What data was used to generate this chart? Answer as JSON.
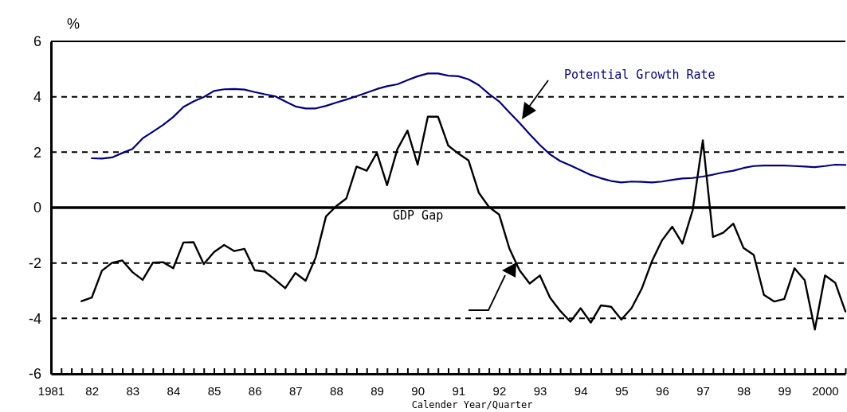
{
  "chart_data": {
    "type": "line",
    "xlabel": "Calender Year/Quarter",
    "ylabel": "%",
    "xlim": [
      1981,
      2000.5
    ],
    "ylim": [
      -6,
      6
    ],
    "yticks": [
      -6,
      -4,
      -2,
      0,
      2,
      4,
      6
    ],
    "xticks": [
      {
        "value": 1981,
        "label": "1981"
      },
      {
        "value": 1981.25,
        "label": null
      },
      {
        "value": 1981.5,
        "label": null
      },
      {
        "value": 1981.75,
        "label": null
      },
      {
        "value": 1982,
        "label": "82"
      },
      {
        "value": 1982.25,
        "label": null
      },
      {
        "value": 1982.5,
        "label": null
      },
      {
        "value": 1982.75,
        "label": null
      },
      {
        "value": 1983,
        "label": "83"
      },
      {
        "value": 1983.25,
        "label": null
      },
      {
        "value": 1983.5,
        "label": null
      },
      {
        "value": 1983.75,
        "label": null
      },
      {
        "value": 1984,
        "label": "84"
      },
      {
        "value": 1984.25,
        "label": null
      },
      {
        "value": 1984.5,
        "label": null
      },
      {
        "value": 1984.75,
        "label": null
      },
      {
        "value": 1985,
        "label": "85"
      },
      {
        "value": 1985.25,
        "label": null
      },
      {
        "value": 1985.5,
        "label": null
      },
      {
        "value": 1985.75,
        "label": null
      },
      {
        "value": 1986,
        "label": "86"
      },
      {
        "value": 1986.25,
        "label": null
      },
      {
        "value": 1986.5,
        "label": null
      },
      {
        "value": 1986.75,
        "label": null
      },
      {
        "value": 1987,
        "label": "87"
      },
      {
        "value": 1987.25,
        "label": null
      },
      {
        "value": 1987.5,
        "label": null
      },
      {
        "value": 1987.75,
        "label": null
      },
      {
        "value": 1988,
        "label": "88"
      },
      {
        "value": 1988.25,
        "label": null
      },
      {
        "value": 1988.5,
        "label": null
      },
      {
        "value": 1988.75,
        "label": null
      },
      {
        "value": 1989,
        "label": "89"
      },
      {
        "value": 1989.25,
        "label": null
      },
      {
        "value": 1989.5,
        "label": null
      },
      {
        "value": 1989.75,
        "label": null
      },
      {
        "value": 1990,
        "label": "90"
      },
      {
        "value": 1990.25,
        "label": null
      },
      {
        "value": 1990.5,
        "label": null
      },
      {
        "value": 1990.75,
        "label": null
      },
      {
        "value": 1991,
        "label": "91"
      },
      {
        "value": 1991.25,
        "label": null
      },
      {
        "value": 1991.5,
        "label": null
      },
      {
        "value": 1991.75,
        "label": null
      },
      {
        "value": 1992,
        "label": "92"
      },
      {
        "value": 1992.25,
        "label": null
      },
      {
        "value": 1992.5,
        "label": null
      },
      {
        "value": 1992.75,
        "label": null
      },
      {
        "value": 1993,
        "label": "93"
      },
      {
        "value": 1993.25,
        "label": null
      },
      {
        "value": 1993.5,
        "label": null
      },
      {
        "value": 1993.75,
        "label": null
      },
      {
        "value": 1994,
        "label": "94"
      },
      {
        "value": 1994.25,
        "label": null
      },
      {
        "value": 1994.5,
        "label": null
      },
      {
        "value": 1994.75,
        "label": null
      },
      {
        "value": 1995,
        "label": "95"
      },
      {
        "value": 1995.25,
        "label": null
      },
      {
        "value": 1995.5,
        "label": null
      },
      {
        "value": 1995.75,
        "label": null
      },
      {
        "value": 1996,
        "label": "96"
      },
      {
        "value": 1996.25,
        "label": null
      },
      {
        "value": 1996.5,
        "label": null
      },
      {
        "value": 1996.75,
        "label": null
      },
      {
        "value": 1997,
        "label": "97"
      },
      {
        "value": 1997.25,
        "label": null
      },
      {
        "value": 1997.5,
        "label": null
      },
      {
        "value": 1997.75,
        "label": null
      },
      {
        "value": 1998,
        "label": "98"
      },
      {
        "value": 1998.25,
        "label": null
      },
      {
        "value": 1998.5,
        "label": null
      },
      {
        "value": 1998.75,
        "label": null
      },
      {
        "value": 1999,
        "label": "99"
      },
      {
        "value": 1999.25,
        "label": null
      },
      {
        "value": 1999.5,
        "label": null
      },
      {
        "value": 1999.75,
        "label": null
      },
      {
        "value": 2000,
        "label": "2000"
      },
      {
        "value": 2000.25,
        "label": null
      },
      {
        "value": 2000.5,
        "label": null
      }
    ],
    "grid": "y",
    "line_style": "solid",
    "marker": "none",
    "ref_lines": [
      {
        "axis": "y",
        "value": 0,
        "color": "#000000"
      }
    ],
    "series": [
      {
        "name": "Potential Growth Rate",
        "color": "#000080",
        "x": [
          1982,
          1982.25,
          1982.5,
          1982.75,
          1983,
          1983.25,
          1983.5,
          1983.75,
          1984,
          1984.25,
          1984.5,
          1984.75,
          1985,
          1985.25,
          1985.5,
          1985.75,
          1986,
          1986.25,
          1986.5,
          1986.75,
          1987,
          1987.25,
          1987.5,
          1987.75,
          1988,
          1988.25,
          1988.5,
          1988.75,
          1989,
          1989.25,
          1989.5,
          1989.75,
          1990,
          1990.25,
          1990.5,
          1990.75,
          1991,
          1991.25,
          1991.5,
          1991.75,
          1992,
          1992.25,
          1992.5,
          1992.75,
          1993,
          1993.25,
          1993.5,
          1993.75,
          1994,
          1994.25,
          1994.5,
          1994.75,
          1995,
          1995.25,
          1995.5,
          1995.75,
          1996,
          1996.25,
          1996.5,
          1996.75,
          1997,
          1997.25,
          1997.5,
          1997.75,
          1998,
          1998.25,
          1998.5,
          1998.75,
          1999,
          1999.25,
          1999.5,
          1999.75,
          2000,
          2000.25,
          2000.5
        ],
        "values": [
          1.78,
          1.77,
          1.81,
          1.97,
          2.12,
          2.5,
          2.74,
          2.98,
          3.27,
          3.63,
          3.83,
          3.99,
          4.21,
          4.27,
          4.28,
          4.26,
          4.17,
          4.09,
          4.02,
          3.83,
          3.65,
          3.58,
          3.58,
          3.67,
          3.79,
          3.9,
          4.02,
          4.15,
          4.28,
          4.38,
          4.45,
          4.6,
          4.74,
          4.84,
          4.84,
          4.76,
          4.74,
          4.63,
          4.42,
          4.1,
          3.83,
          3.44,
          3.06,
          2.65,
          2.26,
          1.92,
          1.68,
          1.52,
          1.35,
          1.18,
          1.06,
          0.96,
          0.91,
          0.94,
          0.93,
          0.91,
          0.94,
          1.0,
          1.05,
          1.07,
          1.12,
          1.19,
          1.27,
          1.33,
          1.43,
          1.5,
          1.52,
          1.52,
          1.52,
          1.5,
          1.48,
          1.46,
          1.5,
          1.55,
          1.54
        ]
      },
      {
        "name": "GDP Gap",
        "color": "#000000",
        "x": [
          1981.75,
          1982,
          1982.25,
          1982.5,
          1982.75,
          1983,
          1983.25,
          1983.5,
          1983.75,
          1984,
          1984.25,
          1984.5,
          1984.75,
          1985,
          1985.25,
          1985.5,
          1985.75,
          1986,
          1986.25,
          1986.5,
          1986.75,
          1987,
          1987.25,
          1987.5,
          1987.75,
          1988,
          1988.25,
          1988.5,
          1988.75,
          1989,
          1989.25,
          1989.5,
          1989.75,
          1990,
          1990.25,
          1990.5,
          1990.75,
          1991,
          1991.25,
          1991.5,
          1991.75,
          1992,
          1992.25,
          1992.5,
          1992.75,
          1993,
          1993.25,
          1993.5,
          1993.75,
          1994,
          1994.25,
          1994.5,
          1994.75,
          1995,
          1995.25,
          1995.5,
          1995.75,
          1996,
          1996.25,
          1996.5,
          1996.75,
          1997,
          1997.25,
          1997.5,
          1997.75,
          1998,
          1998.25,
          1998.5,
          1998.75,
          1999,
          1999.25,
          1999.5,
          1999.75,
          2000,
          2000.25,
          2000.5
        ],
        "values": [
          -3.38,
          -3.25,
          -2.28,
          -1.99,
          -1.91,
          -2.33,
          -2.61,
          -1.99,
          -1.97,
          -2.19,
          -1.26,
          -1.25,
          -2.04,
          -1.61,
          -1.35,
          -1.57,
          -1.49,
          -2.26,
          -2.31,
          -2.6,
          -2.91,
          -2.36,
          -2.64,
          -1.79,
          -0.32,
          0.05,
          0.33,
          1.48,
          1.33,
          1.98,
          0.81,
          2.1,
          2.78,
          1.55,
          3.28,
          3.28,
          2.24,
          1.95,
          1.7,
          0.54,
          0.02,
          -0.25,
          -1.47,
          -2.26,
          -2.74,
          -2.45,
          -3.25,
          -3.73,
          -4.12,
          -3.63,
          -4.15,
          -3.53,
          -3.58,
          -4.04,
          -3.63,
          -2.93,
          -1.94,
          -1.18,
          -0.69,
          -1.3,
          -0.1,
          2.43,
          -1.06,
          -0.91,
          -0.58,
          -1.46,
          -1.71,
          -3.15,
          -3.39,
          -3.3,
          -2.19,
          -2.62,
          -4.4,
          -2.45,
          -2.71,
          -3.75
        ]
      }
    ]
  }
}
